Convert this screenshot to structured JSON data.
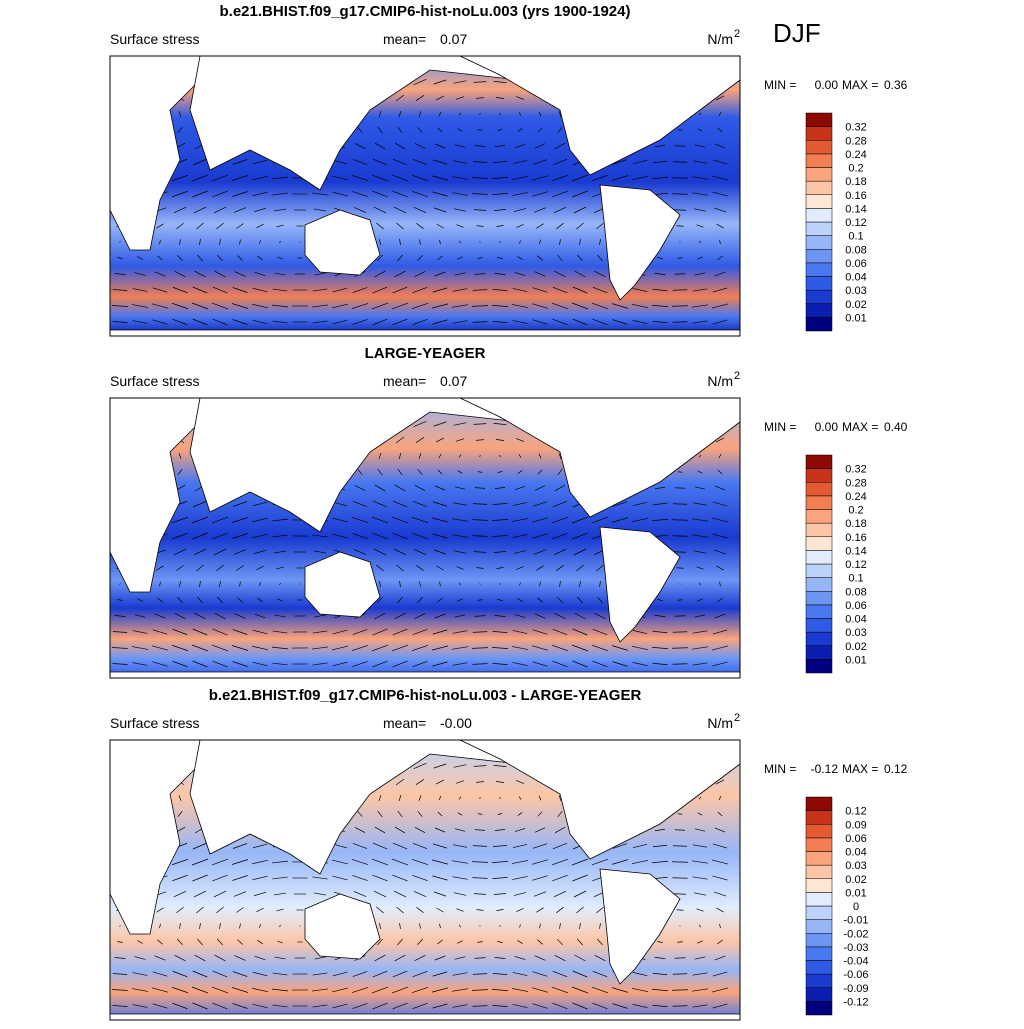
{
  "header": {
    "season": "DJF"
  },
  "palette": [
    "#00007f",
    "#0a1fb0",
    "#1a3ad0",
    "#2f5ae6",
    "#4a78f0",
    "#6d96f4",
    "#96b6f8",
    "#bcd2fa",
    "#e2ecfd",
    "#fde6d4",
    "#fcc6a6",
    "#f9a47c",
    "#f27e54",
    "#e45a32",
    "#c8341a",
    "#8c0a02"
  ],
  "panels": [
    {
      "title": "b.e21.BHIST.f09_g17.CMIP6-hist-noLu.003 (yrs 1900-1924)",
      "field": "Surface stress",
      "mean_label": "mean=",
      "mean": "0.07",
      "units": "N/m",
      "units_exp": "2",
      "min_label": "MIN =",
      "min": "0.00",
      "max_label": "MAX =",
      "max": "0.36",
      "colorbar_labels": [
        "0.01",
        "0.02",
        "0.03",
        "0.04",
        "0.06",
        "0.08",
        "0.1",
        "0.12",
        "0.14",
        "0.16",
        "0.18",
        "0.2",
        "0.24",
        "0.28",
        "0.32"
      ]
    },
    {
      "title": "LARGE-YEAGER",
      "field": "Surface stress",
      "mean_label": "mean=",
      "mean": "0.07",
      "units": "N/m",
      "units_exp": "2",
      "min_label": "MIN =",
      "min": "0.00",
      "max_label": "MAX =",
      "max": "0.40",
      "colorbar_labels": [
        "0.01",
        "0.02",
        "0.03",
        "0.04",
        "0.06",
        "0.08",
        "0.1",
        "0.12",
        "0.14",
        "0.16",
        "0.18",
        "0.2",
        "0.24",
        "0.28",
        "0.32"
      ]
    },
    {
      "title": "b.e21.BHIST.f09_g17.CMIP6-hist-noLu.003 - LARGE-YEAGER",
      "field": "Surface stress",
      "mean_label": "mean=",
      "mean": "-0.00",
      "units": "N/m",
      "units_exp": "2",
      "min_label": "MIN =",
      "min": "-0.12",
      "max_label": "MAX =",
      "max": "0.12",
      "colorbar_labels": [
        "-0.12",
        "-0.09",
        "-0.06",
        "-0.04",
        "-0.03",
        "-0.02",
        "-0.01",
        "0",
        "0.01",
        "0.02",
        "0.03",
        "0.04",
        "0.06",
        "0.09",
        "0.12"
      ]
    }
  ]
}
